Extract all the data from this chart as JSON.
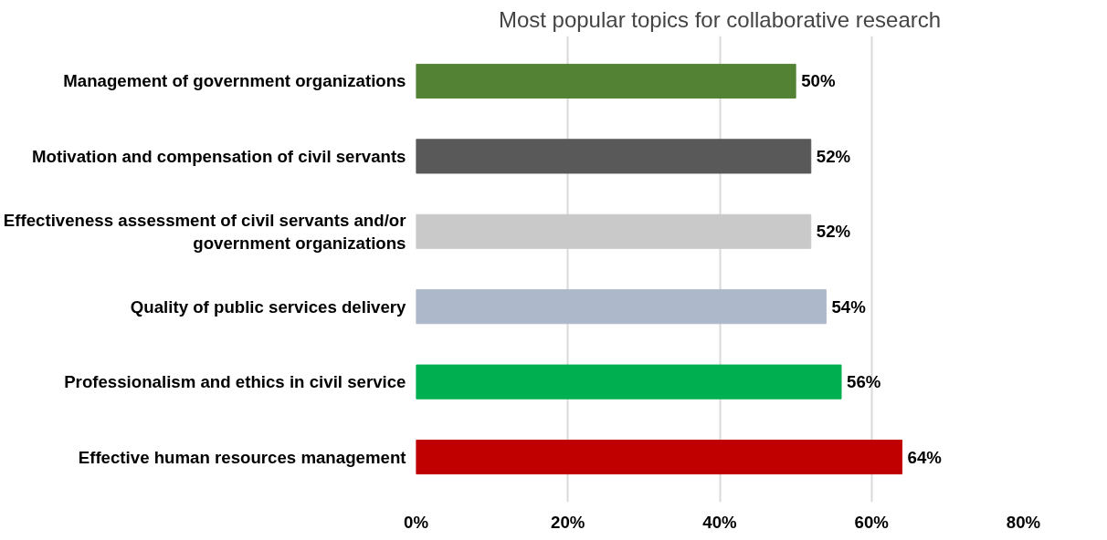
{
  "chart_data": {
    "type": "bar",
    "orientation": "horizontal",
    "title": "Most popular topics for collaborative research",
    "categories": [
      "Management of government organizations",
      "Motivation and compensation of civil servants",
      "Effectiveness assessment of civil servants and/or\ngovernment organizations",
      "Quality of public services delivery",
      "Professionalism and ethics in civil service",
      "Effective human resources management"
    ],
    "values": [
      50,
      52,
      52,
      54,
      56,
      64
    ],
    "colors": [
      "#548235",
      "#595959",
      "#c9c9c9",
      "#adb9ca",
      "#00b050",
      "#c00000"
    ],
    "value_labels": [
      "50%",
      "52%",
      "52%",
      "54%",
      "56%",
      "64%"
    ],
    "xlim": [
      0,
      80
    ],
    "xticks": [
      {
        "value": 0,
        "label": "0%"
      },
      {
        "value": 20,
        "label": "20%"
      },
      {
        "value": 40,
        "label": "40%"
      },
      {
        "value": 60,
        "label": "60%"
      },
      {
        "value": 80,
        "label": "80%"
      }
    ],
    "grid": "x"
  }
}
